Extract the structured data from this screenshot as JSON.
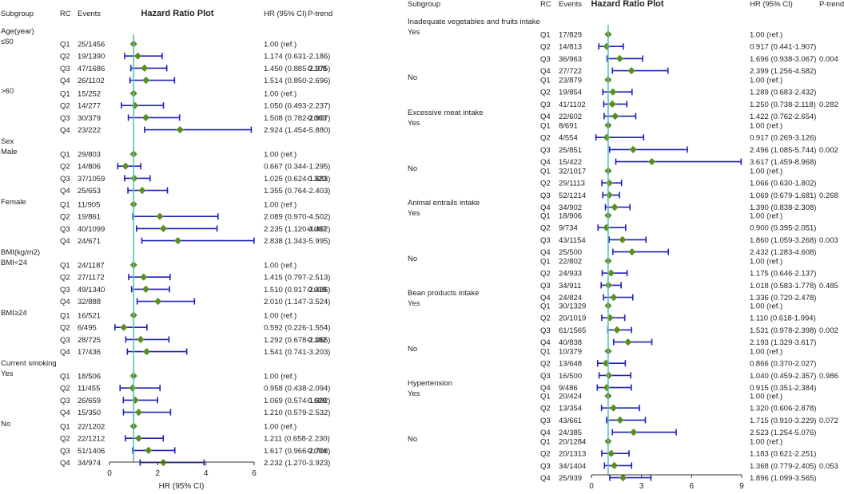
{
  "chart_data": [
    {
      "type": "forest",
      "title": "Hazard Ratio Plot",
      "headers": {
        "subgroup": "Subgroup",
        "rc": "RC",
        "events": "Events",
        "hr": "HR (95% CI)",
        "ptrend": "P-trend"
      },
      "xlabel": "HR (95% CI)",
      "xlim": [
        0,
        6
      ],
      "xticks": [
        "0",
        "2",
        "4",
        "6"
      ],
      "reference_line": 1,
      "groups": [
        {
          "label": "Age(year)",
          "sub": "≤60",
          "ptrend": "0.108",
          "rows": [
            {
              "rc": "Q1",
              "events": "25/1456",
              "hr_text": "1.00 (ref.)",
              "hr": 1.0,
              "lo": 1.0,
              "hi": 1.0
            },
            {
              "rc": "Q2",
              "events": "19/1390",
              "hr_text": "1.174 (0.631-2.186)",
              "hr": 1.174,
              "lo": 0.631,
              "hi": 2.186
            },
            {
              "rc": "Q3",
              "events": "47/1686",
              "hr_text": "1.450 (0.885-2.375)",
              "hr": 1.45,
              "lo": 0.885,
              "hi": 2.375
            },
            {
              "rc": "Q4",
              "events": "26/1102",
              "hr_text": "1.514 (0.850-2.696)",
              "hr": 1.514,
              "lo": 0.85,
              "hi": 2.696
            }
          ]
        },
        {
          "label": "",
          "sub": ">60",
          "ptrend": "0.003",
          "rows": [
            {
              "rc": "Q1",
              "events": "15/252",
              "hr_text": "1.00 (ref.)",
              "hr": 1.0,
              "lo": 1.0,
              "hi": 1.0
            },
            {
              "rc": "Q2",
              "events": "14/277",
              "hr_text": "1.050 (0.493-2.237)",
              "hr": 1.05,
              "lo": 0.493,
              "hi": 2.237
            },
            {
              "rc": "Q3",
              "events": "30/379",
              "hr_text": "1.508 (0.782-2.907)",
              "hr": 1.508,
              "lo": 0.782,
              "hi": 2.907
            },
            {
              "rc": "Q4",
              "events": "23/222",
              "hr_text": "2.924 (1.454-5.880)",
              "hr": 2.924,
              "lo": 1.454,
              "hi": 5.88
            }
          ]
        },
        {
          "label": "Sex",
          "sub": "Male",
          "ptrend": "0.323",
          "rows": [
            {
              "rc": "Q1",
              "events": "29/803",
              "hr_text": "1.00 (ref.)",
              "hr": 1.0,
              "lo": 1.0,
              "hi": 1.0
            },
            {
              "rc": "Q2",
              "events": "14/806",
              "hr_text": "0.667 (0.344-1.295)",
              "hr": 0.667,
              "lo": 0.344,
              "hi": 1.295
            },
            {
              "rc": "Q3",
              "events": "37/1059",
              "hr_text": "1.025 (0.624-1.683)",
              "hr": 1.025,
              "lo": 0.624,
              "hi": 1.683
            },
            {
              "rc": "Q4",
              "events": "25/653",
              "hr_text": "1.355 (0.764-2.403)",
              "hr": 1.355,
              "lo": 0.764,
              "hi": 2.403
            }
          ]
        },
        {
          "label": "",
          "sub": "Female",
          "ptrend": "0.007",
          "rows": [
            {
              "rc": "Q1",
              "events": "11/905",
              "hr_text": "1.00 (ref.)",
              "hr": 1.0,
              "lo": 1.0,
              "hi": 1.0
            },
            {
              "rc": "Q2",
              "events": "19/861",
              "hr_text": "2.089 (0.970-4.502)",
              "hr": 2.089,
              "lo": 0.97,
              "hi": 4.502
            },
            {
              "rc": "Q3",
              "events": "40/1099",
              "hr_text": "2.235 (1.120-4.462)",
              "hr": 2.235,
              "lo": 1.12,
              "hi": 4.462
            },
            {
              "rc": "Q4",
              "events": "24/671",
              "hr_text": "2.838 (1.343-5.995)",
              "hr": 2.838,
              "lo": 1.343,
              "hi": 5.995
            }
          ]
        },
        {
          "label": "BMI(kg/m2)",
          "sub": "BMI<24",
          "ptrend": "0.018",
          "rows": [
            {
              "rc": "Q1",
              "events": "24/1187",
              "hr_text": "1.00 (ref.)",
              "hr": 1.0,
              "lo": 1.0,
              "hi": 1.0
            },
            {
              "rc": "Q2",
              "events": "27/1172",
              "hr_text": "1.415 (0.797-2.513)",
              "hr": 1.415,
              "lo": 0.797,
              "hi": 2.513
            },
            {
              "rc": "Q3",
              "events": "49/1340",
              "hr_text": "1.510 (0.917-2.486)",
              "hr": 1.51,
              "lo": 0.917,
              "hi": 2.486
            },
            {
              "rc": "Q4",
              "events": "32/888",
              "hr_text": "2.010 (1.147-3.524)",
              "hr": 2.01,
              "lo": 1.147,
              "hi": 3.524
            }
          ]
        },
        {
          "label": "",
          "sub": "BMI≥24",
          "ptrend": "0.182",
          "rows": [
            {
              "rc": "Q1",
              "events": "16/521",
              "hr_text": "1.00 (ref.)",
              "hr": 1.0,
              "lo": 1.0,
              "hi": 1.0
            },
            {
              "rc": "Q2",
              "events": "6/495",
              "hr_text": "0.592 (0.226-1.554)",
              "hr": 0.592,
              "lo": 0.226,
              "hi": 1.554
            },
            {
              "rc": "Q3",
              "events": "28/725",
              "hr_text": "1.292 (0.678-2.465)",
              "hr": 1.292,
              "lo": 0.678,
              "hi": 2.465
            },
            {
              "rc": "Q4",
              "events": "17/436",
              "hr_text": "1.541 (0.741-3.203)",
              "hr": 1.541,
              "lo": 0.741,
              "hi": 3.203
            }
          ]
        },
        {
          "label": "Current smoking",
          "sub": "Yes",
          "ptrend": "0.628",
          "rows": [
            {
              "rc": "Q1",
              "events": "18/506",
              "hr_text": "1.00 (ref.)",
              "hr": 1.0,
              "lo": 1.0,
              "hi": 1.0
            },
            {
              "rc": "Q2",
              "events": "11/455",
              "hr_text": "0.958 (0.438-2.094)",
              "hr": 0.958,
              "lo": 0.438,
              "hi": 2.094
            },
            {
              "rc": "Q3",
              "events": "26/659",
              "hr_text": "1.069 (0.574-1.992)",
              "hr": 1.069,
              "lo": 0.574,
              "hi": 1.992
            },
            {
              "rc": "Q4",
              "events": "15/350",
              "hr_text": "1.210 (0.579-2.532)",
              "hr": 1.21,
              "lo": 0.579,
              "hi": 2.532
            }
          ]
        },
        {
          "label": "",
          "sub": "No",
          "ptrend": "0.004",
          "rows": [
            {
              "rc": "Q1",
              "events": "22/1202",
              "hr_text": "1.00 (ref.)",
              "hr": 1.0,
              "lo": 1.0,
              "hi": 1.0
            },
            {
              "rc": "Q2",
              "events": "22/1212",
              "hr_text": "1.211 (0.658-2.230)",
              "hr": 1.211,
              "lo": 0.658,
              "hi": 2.23
            },
            {
              "rc": "Q3",
              "events": "51/1406",
              "hr_text": "1.617 (0.966-2.708)",
              "hr": 1.617,
              "lo": 0.966,
              "hi": 2.708
            },
            {
              "rc": "Q4",
              "events": "34/974",
              "hr_text": "2.232 (1.270-3.923)",
              "hr": 2.232,
              "lo": 1.27,
              "hi": 3.923
            }
          ]
        }
      ]
    },
    {
      "type": "forest",
      "title": "Hazard Ratio Plot",
      "headers": {
        "subgroup": "Subgroup",
        "rc": "RC",
        "events": "Events",
        "hr": "HR (95% CI)",
        "ptrend": "P-trend"
      },
      "xlabel": "",
      "xlim": [
        0,
        9
      ],
      "xticks": [
        "0",
        "3",
        "6",
        "9"
      ],
      "reference_line": 1,
      "groups": [
        {
          "label": "Inadequate vegetables and fruits intake",
          "sub": "Yes",
          "ptrend": "0.004",
          "rows": [
            {
              "rc": "Q1",
              "events": "17/829",
              "hr_text": "1.00 (ref.)",
              "hr": 1.0,
              "lo": 1.0,
              "hi": 1.0
            },
            {
              "rc": "Q2",
              "events": "14/813",
              "hr_text": "0.917 (0.441-1.907)",
              "hr": 0.917,
              "lo": 0.441,
              "hi": 1.907
            },
            {
              "rc": "Q3",
              "events": "36/963",
              "hr_text": "1.696 (0.938-3.067)",
              "hr": 1.696,
              "lo": 0.938,
              "hi": 3.067
            },
            {
              "rc": "Q4",
              "events": "27/722",
              "hr_text": "2.399 (1.256-4.582)",
              "hr": 2.399,
              "lo": 1.256,
              "hi": 4.582
            }
          ]
        },
        {
          "label": "",
          "sub": "No",
          "ptrend": "0.282",
          "rows": [
            {
              "rc": "Q1",
              "events": "23/879",
              "hr_text": "1.00 (ref.)",
              "hr": 1.0,
              "lo": 1.0,
              "hi": 1.0
            },
            {
              "rc": "Q2",
              "events": "19/854",
              "hr_text": "1.289 (0.683-2.432)",
              "hr": 1.289,
              "lo": 0.683,
              "hi": 2.432
            },
            {
              "rc": "Q3",
              "events": "41/1102",
              "hr_text": "1.250 (0.738-2.118)",
              "hr": 1.25,
              "lo": 0.738,
              "hi": 2.118
            },
            {
              "rc": "Q4",
              "events": "22/602",
              "hr_text": "1.422 (0.762-2.654)",
              "hr": 1.422,
              "lo": 0.762,
              "hi": 2.654
            }
          ]
        },
        {
          "label": "Excessive meat intake",
          "sub": "Yes",
          "ptrend": "0.002",
          "rows": [
            {
              "rc": "Q1",
              "events": "8/691",
              "hr_text": "1.00 (ref.)",
              "hr": 1.0,
              "lo": 1.0,
              "hi": 1.0
            },
            {
              "rc": "Q2",
              "events": "4/554",
              "hr_text": "0.917 (0.269-3.126)",
              "hr": 0.917,
              "lo": 0.269,
              "hi": 3.126
            },
            {
              "rc": "Q3",
              "events": "25/851",
              "hr_text": "2.496 (1.085-5.744)",
              "hr": 2.496,
              "lo": 1.085,
              "hi": 5.744
            },
            {
              "rc": "Q4",
              "events": "15/422",
              "hr_text": "3.617 (1.459-8.968)",
              "hr": 3.617,
              "lo": 1.459,
              "hi": 8.968
            }
          ]
        },
        {
          "label": "",
          "sub": "No",
          "ptrend": "0.268",
          "rows": [
            {
              "rc": "Q1",
              "events": "32/1017",
              "hr_text": "1.00 (ref.)",
              "hr": 1.0,
              "lo": 1.0,
              "hi": 1.0
            },
            {
              "rc": "Q2",
              "events": "29/1113",
              "hr_text": "1.066 (0.630-1.802)",
              "hr": 1.066,
              "lo": 0.63,
              "hi": 1.802
            },
            {
              "rc": "Q3",
              "events": "52/1214",
              "hr_text": "1.069 (0.679-1.681)",
              "hr": 1.069,
              "lo": 0.679,
              "hi": 1.681
            },
            {
              "rc": "Q4",
              "events": "34/902",
              "hr_text": "1.390 (0.838-2.308)",
              "hr": 1.39,
              "lo": 0.838,
              "hi": 2.308
            }
          ]
        },
        {
          "label": "Animal entrails intake",
          "sub": "Yes",
          "ptrend": "0.003",
          "rows": [
            {
              "rc": "Q1",
              "events": "18/906",
              "hr_text": "1.00 (ref.)",
              "hr": 1.0,
              "lo": 1.0,
              "hi": 1.0
            },
            {
              "rc": "Q2",
              "events": "9/734",
              "hr_text": "0.900 (0.395-2.051)",
              "hr": 0.9,
              "lo": 0.395,
              "hi": 2.051
            },
            {
              "rc": "Q3",
              "events": "43/1154",
              "hr_text": "1.860 (1.059-3.268)",
              "hr": 1.86,
              "lo": 1.059,
              "hi": 3.268
            },
            {
              "rc": "Q4",
              "events": "25/500",
              "hr_text": "2.432 (1.283-4.608)",
              "hr": 2.432,
              "lo": 1.283,
              "hi": 4.608
            }
          ]
        },
        {
          "label": "",
          "sub": "No",
          "ptrend": "0.485",
          "rows": [
            {
              "rc": "Q1",
              "events": "22/802",
              "hr_text": "1.00 (ref.)",
              "hr": 1.0,
              "lo": 1.0,
              "hi": 1.0
            },
            {
              "rc": "Q2",
              "events": "24/933",
              "hr_text": "1.175 (0.646-2.137)",
              "hr": 1.175,
              "lo": 0.646,
              "hi": 2.137
            },
            {
              "rc": "Q3",
              "events": "34/911",
              "hr_text": "1.018 (0.583-1.778)",
              "hr": 1.018,
              "lo": 0.583,
              "hi": 1.778
            },
            {
              "rc": "Q4",
              "events": "24/824",
              "hr_text": "1.336 (0.720-2.478)",
              "hr": 1.336,
              "lo": 0.72,
              "hi": 2.478
            }
          ]
        },
        {
          "label": "Bean products intake",
          "sub": "Yes",
          "ptrend": "0.002",
          "rows": [
            {
              "rc": "Q1",
              "events": "30/1329",
              "hr_text": "1.00 (ref.)",
              "hr": 1.0,
              "lo": 1.0,
              "hi": 1.0
            },
            {
              "rc": "Q2",
              "events": "20/1019",
              "hr_text": "1.110 (0.618-1.994)",
              "hr": 1.11,
              "lo": 0.618,
              "hi": 1.994
            },
            {
              "rc": "Q3",
              "events": "61/1565",
              "hr_text": "1.531 (0.978-2.398)",
              "hr": 1.531,
              "lo": 0.978,
              "hi": 2.398
            },
            {
              "rc": "Q4",
              "events": "40/838",
              "hr_text": "2.193 (1.329-3.617)",
              "hr": 2.193,
              "lo": 1.329,
              "hi": 3.617
            }
          ]
        },
        {
          "label": "",
          "sub": "No",
          "ptrend": "0.986",
          "rows": [
            {
              "rc": "Q1",
              "events": "10/379",
              "hr_text": "1.00 (ref.)",
              "hr": 1.0,
              "lo": 1.0,
              "hi": 1.0
            },
            {
              "rc": "Q2",
              "events": "13/648",
              "hr_text": "0.866 (0.370-2.027)",
              "hr": 0.866,
              "lo": 0.37,
              "hi": 2.027
            },
            {
              "rc": "Q3",
              "events": "16/500",
              "hr_text": "1.040 (0.459-2.357)",
              "hr": 1.04,
              "lo": 0.459,
              "hi": 2.357
            },
            {
              "rc": "Q4",
              "events": "9/486",
              "hr_text": "0.915 (0.351-2.384)",
              "hr": 0.915,
              "lo": 0.351,
              "hi": 2.384
            }
          ]
        },
        {
          "label": "Hypertension",
          "sub": "Yes",
          "ptrend": "0.072",
          "rows": [
            {
              "rc": "Q1",
              "events": "20/424",
              "hr_text": "1.00 (ref.)",
              "hr": 1.0,
              "lo": 1.0,
              "hi": 1.0
            },
            {
              "rc": "Q2",
              "events": "13/354",
              "hr_text": "1.320 (0.606-2.878)",
              "hr": 1.32,
              "lo": 0.606,
              "hi": 2.878
            },
            {
              "rc": "Q3",
              "events": "43/661",
              "hr_text": "1.715 (0.910-3.229)",
              "hr": 1.715,
              "lo": 0.91,
              "hi": 3.229
            },
            {
              "rc": "Q4",
              "events": "24/385",
              "hr_text": "2.523 (1.254-5.076)",
              "hr": 2.523,
              "lo": 1.254,
              "hi": 5.076
            }
          ]
        },
        {
          "label": "",
          "sub": "No",
          "ptrend": "0.053",
          "rows": [
            {
              "rc": "Q1",
              "events": "20/1284",
              "hr_text": "1.00 (ref.)",
              "hr": 1.0,
              "lo": 1.0,
              "hi": 1.0
            },
            {
              "rc": "Q2",
              "events": "20/1313",
              "hr_text": "1.183 (0.621-2.251)",
              "hr": 1.183,
              "lo": 0.621,
              "hi": 2.251
            },
            {
              "rc": "Q3",
              "events": "34/1404",
              "hr_text": "1.368 (0.779-2.405)",
              "hr": 1.368,
              "lo": 0.779,
              "hi": 2.405
            },
            {
              "rc": "Q4",
              "events": "25/939",
              "hr_text": "1.896 (1.099-3.565)",
              "hr": 1.896,
              "lo": 1.099,
              "hi": 3.565
            }
          ]
        }
      ]
    }
  ],
  "colors": {
    "ci_line": "#1f1fbf",
    "marker": "#5a8f1e",
    "reference_line": "#5fbfb6",
    "axis": "#333333",
    "text": "#222222"
  }
}
